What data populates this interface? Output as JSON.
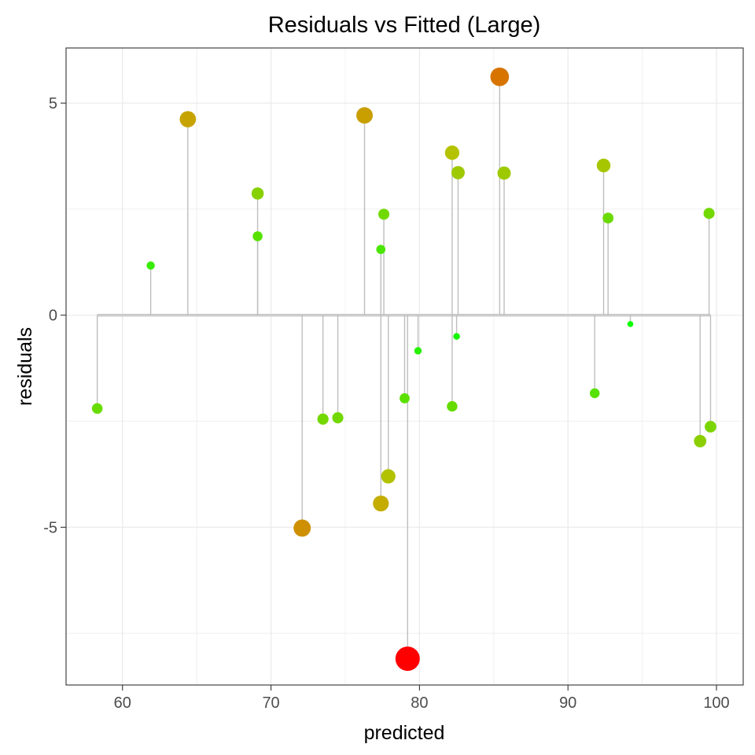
{
  "chart_data": {
    "type": "scatter",
    "title": "Residuals vs Fitted (Large)",
    "xlabel": "predicted",
    "ylabel": "residuals",
    "xlim": [
      56.2,
      101.8
    ],
    "ylim": [
      -8.72,
      6.3
    ],
    "x_ticks": [
      60,
      70,
      80,
      90,
      100
    ],
    "y_ticks": [
      -5,
      0,
      5
    ],
    "x_tick_labels": [
      "60",
      "70",
      "80",
      "90",
      "100"
    ],
    "y_tick_labels": [
      "-5",
      "0",
      "5"
    ],
    "grid": true,
    "legend": "none",
    "color_scale": {
      "low": "#00ff00",
      "mid": "#ffff00",
      "high": "#ff0000",
      "by": "absolute residual"
    },
    "baseline_color": "#cccccc",
    "segment_color": "#bebebe",
    "points": [
      {
        "x": 58.3,
        "y": -2.2
      },
      {
        "x": 61.9,
        "y": 1.17
      },
      {
        "x": 64.4,
        "y": 4.62
      },
      {
        "x": 69.1,
        "y": 2.87
      },
      {
        "x": 69.1,
        "y": 1.86
      },
      {
        "x": 72.1,
        "y": -5.02
      },
      {
        "x": 73.5,
        "y": -2.45
      },
      {
        "x": 74.5,
        "y": -2.42
      },
      {
        "x": 76.3,
        "y": 4.71
      },
      {
        "x": 77.4,
        "y": 1.55
      },
      {
        "x": 77.6,
        "y": 2.38
      },
      {
        "x": 77.4,
        "y": -4.44
      },
      {
        "x": 77.9,
        "y": -3.8
      },
      {
        "x": 79.0,
        "y": -1.96
      },
      {
        "x": 79.2,
        "y": -8.1
      },
      {
        "x": 79.9,
        "y": -0.84
      },
      {
        "x": 82.2,
        "y": 3.83
      },
      {
        "x": 82.2,
        "y": -2.15
      },
      {
        "x": 82.5,
        "y": -0.5
      },
      {
        "x": 82.6,
        "y": 3.36
      },
      {
        "x": 85.4,
        "y": 5.62
      },
      {
        "x": 85.7,
        "y": 3.35
      },
      {
        "x": 91.8,
        "y": -1.84
      },
      {
        "x": 92.4,
        "y": 3.53
      },
      {
        "x": 92.7,
        "y": 2.29
      },
      {
        "x": 94.2,
        "y": -0.21
      },
      {
        "x": 98.9,
        "y": -2.97
      },
      {
        "x": 99.5,
        "y": 2.4
      },
      {
        "x": 99.6,
        "y": -2.63
      }
    ]
  }
}
